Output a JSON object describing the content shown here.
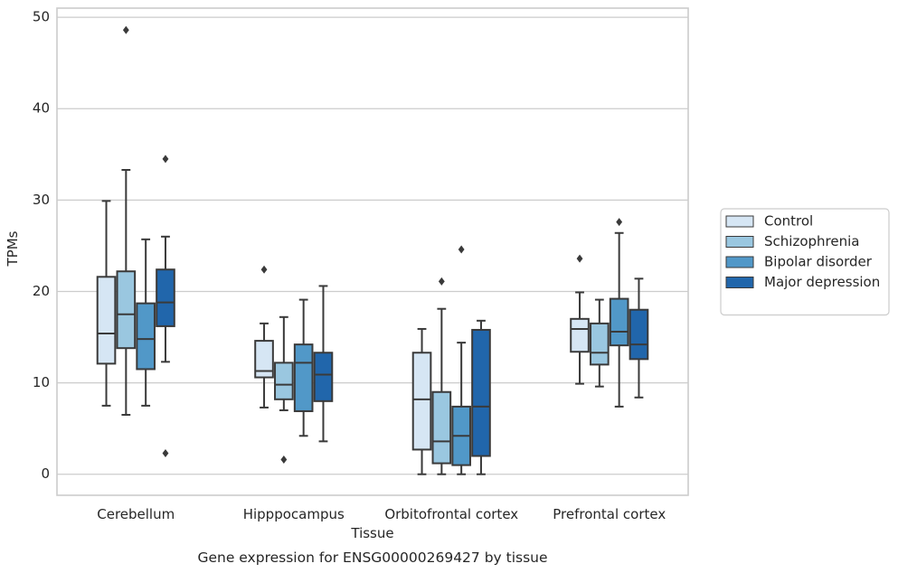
{
  "chart_data": {
    "type": "boxplot",
    "title": "",
    "caption": "Gene expression for ENSG00000269427 by tissue",
    "xlabel": "Tissue",
    "ylabel": "TPMs",
    "ylim": [
      -2.3,
      51
    ],
    "yticks": [
      0,
      10,
      20,
      30,
      40,
      50
    ],
    "grid": true,
    "legend_position": "right-center",
    "categories": [
      "Cerebellum",
      "Hipppocampus",
      "Orbitofrontal cortex",
      "Prefrontal cortex"
    ],
    "series": [
      {
        "name": "Control",
        "color": "#d6e6f4",
        "boxes": [
          {
            "whisker_low": 7.5,
            "q1": 12.1,
            "median": 15.4,
            "q3": 21.6,
            "whisker_high": 29.9,
            "outliers": []
          },
          {
            "whisker_low": 7.3,
            "q1": 10.6,
            "median": 11.3,
            "q3": 14.6,
            "whisker_high": 16.5,
            "outliers": [
              22.4
            ]
          },
          {
            "whisker_low": 0.0,
            "q1": 2.7,
            "median": 8.2,
            "q3": 13.3,
            "whisker_high": 15.9,
            "outliers": []
          },
          {
            "whisker_low": 9.9,
            "q1": 13.4,
            "median": 15.9,
            "q3": 17.0,
            "whisker_high": 19.9,
            "outliers": [
              23.6
            ]
          }
        ]
      },
      {
        "name": "Schizophrenia",
        "color": "#9ac7e0",
        "boxes": [
          {
            "whisker_low": 6.5,
            "q1": 13.8,
            "median": 17.5,
            "q3": 22.2,
            "whisker_high": 33.3,
            "outliers": [
              48.6
            ]
          },
          {
            "whisker_low": 7.0,
            "q1": 8.2,
            "median": 9.8,
            "q3": 12.2,
            "whisker_high": 17.2,
            "outliers": [
              1.6
            ]
          },
          {
            "whisker_low": 0.0,
            "q1": 1.2,
            "median": 3.6,
            "q3": 9.0,
            "whisker_high": 18.1,
            "outliers": [
              21.1
            ]
          },
          {
            "whisker_low": 9.6,
            "q1": 12.0,
            "median": 13.3,
            "q3": 16.5,
            "whisker_high": 19.1,
            "outliers": []
          }
        ]
      },
      {
        "name": "Bipolar disorder",
        "color": "#5198c8",
        "boxes": [
          {
            "whisker_low": 7.5,
            "q1": 11.5,
            "median": 14.8,
            "q3": 18.7,
            "whisker_high": 25.7,
            "outliers": []
          },
          {
            "whisker_low": 4.2,
            "q1": 6.9,
            "median": 12.2,
            "q3": 14.2,
            "whisker_high": 19.1,
            "outliers": []
          },
          {
            "whisker_low": 0.0,
            "q1": 1.0,
            "median": 4.2,
            "q3": 7.4,
            "whisker_high": 14.4,
            "outliers": [
              24.6
            ]
          },
          {
            "whisker_low": 7.4,
            "q1": 14.1,
            "median": 15.6,
            "q3": 19.2,
            "whisker_high": 26.4,
            "outliers": [
              27.6
            ]
          }
        ]
      },
      {
        "name": "Major depression",
        "color": "#2166ab",
        "boxes": [
          {
            "whisker_low": 12.3,
            "q1": 16.2,
            "median": 18.8,
            "q3": 22.4,
            "whisker_high": 26.0,
            "outliers": [
              34.5,
              2.3
            ]
          },
          {
            "whisker_low": 3.6,
            "q1": 8.0,
            "median": 10.9,
            "q3": 13.3,
            "whisker_high": 20.6,
            "outliers": []
          },
          {
            "whisker_low": 0.0,
            "q1": 2.0,
            "median": 7.4,
            "q3": 15.8,
            "whisker_high": 16.8,
            "outliers": []
          },
          {
            "whisker_low": 8.4,
            "q1": 12.6,
            "median": 14.2,
            "q3": 18.0,
            "whisker_high": 21.4,
            "outliers": []
          }
        ]
      }
    ]
  }
}
